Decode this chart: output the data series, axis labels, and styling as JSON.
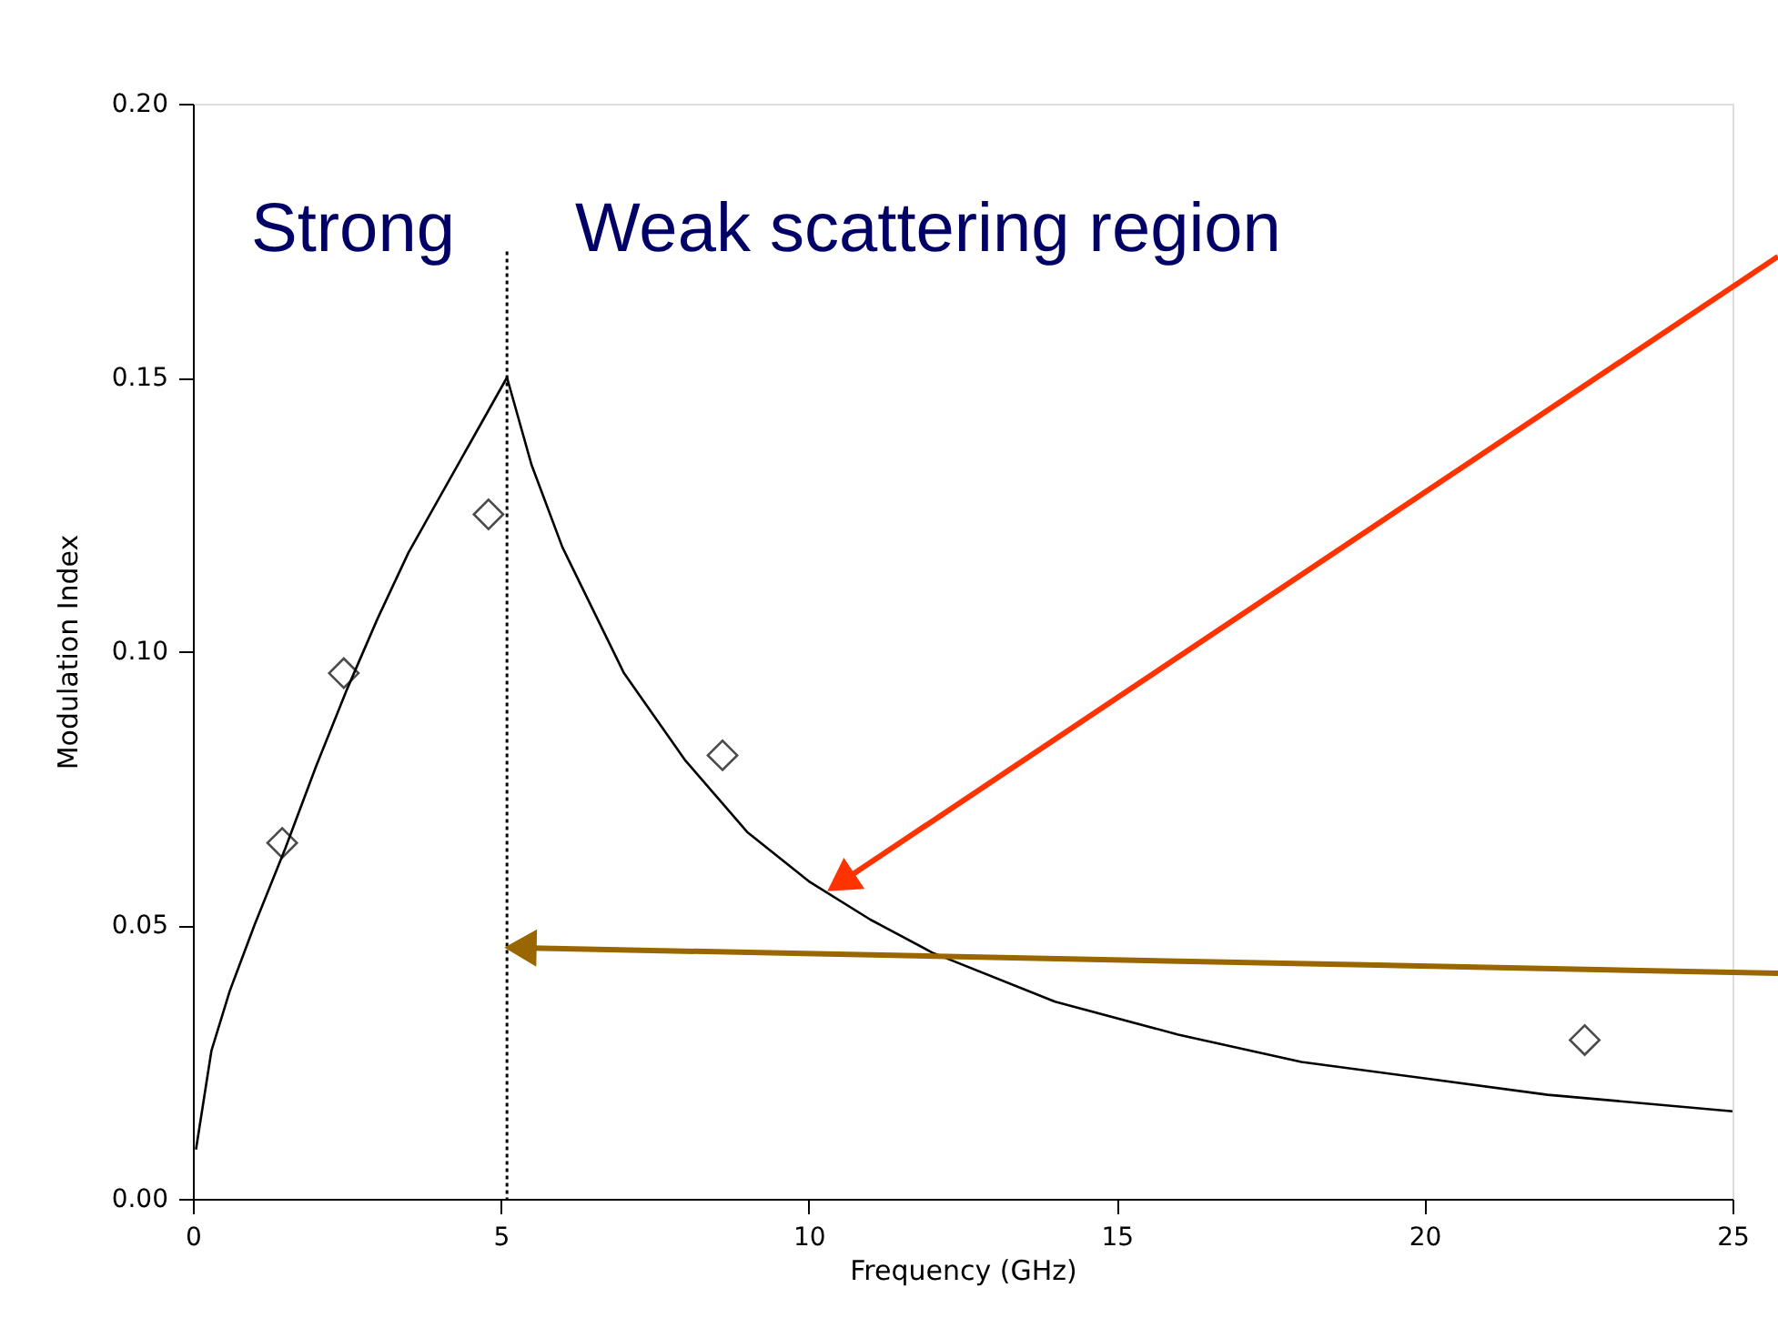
{
  "chart_data": {
    "type": "scatter",
    "xlabel": "Frequency (GHz)",
    "ylabel": "Modulation Index",
    "series": [
      {
        "color": "#000000",
        "marker": "diamond",
        "x": [
          1.45,
          2.45,
          4.8,
          8.6,
          22.6
        ],
        "values": [
          0.065,
          0.096,
          0.125,
          0.081,
          0.029
        ]
      },
      {
        "type": "line",
        "color": "#000000",
        "marker": "none",
        "line_style": "solid",
        "x": [
          0.05,
          0.3,
          0.6,
          1.0,
          1.5,
          2.0,
          2.5,
          3.0,
          3.5,
          4.0,
          4.5,
          5.1,
          5.5,
          6,
          7,
          8,
          9,
          10,
          11,
          12,
          14,
          16,
          18,
          20,
          22,
          25
        ],
        "values": [
          0.009,
          0.027,
          0.038,
          0.05,
          0.064,
          0.079,
          0.093,
          0.106,
          0.118,
          0.128,
          0.138,
          0.15,
          0.134,
          0.119,
          0.096,
          0.08,
          0.067,
          0.058,
          0.051,
          0.045,
          0.036,
          0.03,
          0.025,
          0.022,
          0.019,
          0.016
        ]
      }
    ],
    "ref_lines": [
      {
        "axis": "x",
        "value": 5.1,
        "color": "#000000",
        "line_style": "dotted"
      }
    ],
    "annotations": [
      "Strong",
      "Weak scattering region"
    ],
    "xlim": [
      0,
      25
    ],
    "xticks": [
      0,
      5,
      10,
      15,
      20,
      25
    ],
    "ylim": [
      0,
      0.2
    ],
    "yticks": [
      {
        "value": 0,
        "label": "0.00"
      },
      {
        "value": 0.05,
        "label": "0.05"
      },
      {
        "value": 0.1,
        "label": "0.10"
      },
      {
        "value": 0.15,
        "label": "0.15"
      },
      {
        "value": 0.2,
        "label": "0.20"
      }
    ],
    "grid": false
  }
}
